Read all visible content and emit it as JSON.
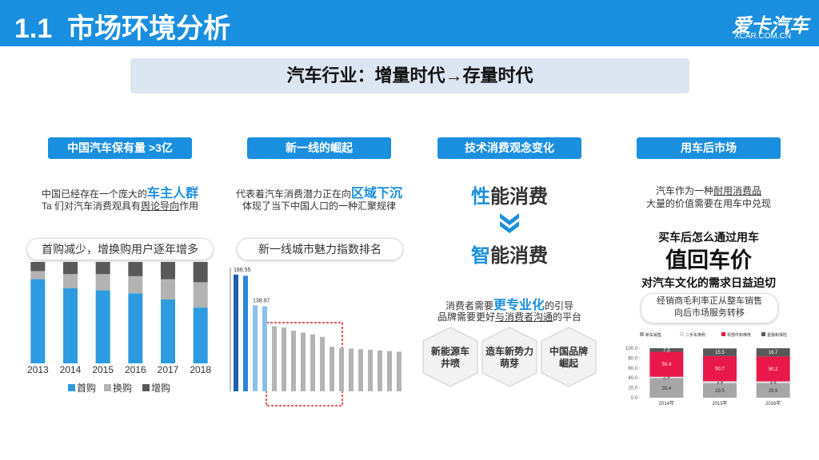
{
  "header": {
    "title": "1.1  市场环境分析",
    "logo": "爱卡汽车",
    "logo_sub": "XCAR.COM.CN"
  },
  "banner": "汽车行业：增量时代→存量时代",
  "columns": [
    {
      "heading": "中国汽车保有量 >3亿",
      "line1": [
        "中国已经存在一个庞大的",
        "车主人群"
      ],
      "line2": [
        "Ta 们对汽车消费观具有",
        "舆论导向",
        "作用"
      ],
      "pill": "首购减少，增换购用户逐年增多"
    },
    {
      "heading": "新一线的崛起",
      "line1": [
        "代表着汽车消费潜力正在向",
        "区域下沉"
      ],
      "line2": [
        "体现了当下中国人口的一种汇聚规律"
      ],
      "pill": "新一线城市魅力指数排名"
    },
    {
      "heading": "技术消费观念变化",
      "big1": [
        "性",
        "能消费"
      ],
      "big2": [
        "智",
        "能消费"
      ],
      "line1": [
        "消费者需要",
        "更专业化",
        "的引导"
      ],
      "line2": [
        "品牌需要更好",
        "与消费者沟通",
        "的平台"
      ],
      "hexes": [
        [
          "新能源车",
          "井喷"
        ],
        [
          "造车新势力",
          "萌芽"
        ],
        [
          "中国品牌",
          "崛起"
        ]
      ]
    },
    {
      "heading": "用车后市场",
      "line1": [
        "汽车作为一种",
        "耐用消费品"
      ],
      "line2": [
        "大量的价值需要在用车中兑现"
      ],
      "q1": "买车后怎么通过用车",
      "q2": "值回车价",
      "q3": "对汽车文化的需求日益迫切",
      "pill": [
        "经销商毛利率正从整车销售",
        "向后市场服务转移"
      ]
    }
  ],
  "chart_data": [
    {
      "type": "bar",
      "stacked": true,
      "categories": [
        "2013",
        "2014",
        "2015",
        "2016",
        "2017",
        "2018"
      ],
      "ylim": [
        0,
        100
      ],
      "series": [
        {
          "name": "首购",
          "color": "#2e9be0",
          "values": [
            83,
            74,
            72,
            69,
            63,
            55
          ]
        },
        {
          "name": "换购",
          "color": "#b3b3b3",
          "values": [
            8,
            14,
            16,
            17,
            20,
            25
          ]
        },
        {
          "name": "增购",
          "color": "#595959",
          "values": [
            9,
            12,
            12,
            14,
            17,
            20
          ]
        }
      ]
    },
    {
      "type": "bar",
      "categories": [
        null,
        null,
        null,
        null,
        null,
        null,
        null,
        null,
        null,
        null,
        null,
        null,
        null,
        null,
        null,
        null,
        null,
        null
      ],
      "ylim": [
        0,
        200
      ],
      "values": [
        188.55,
        186.68,
        138.97,
        137.5,
        105,
        103,
        98,
        95,
        92,
        88,
        72,
        70,
        69,
        68,
        67,
        66,
        65,
        64
      ],
      "colors": [
        "#1f5fae",
        "#2e86d6",
        "#8cc0ec",
        "#8cc0ec",
        "#b3b3b3",
        "#b3b3b3",
        "#b3b3b3",
        "#b3b3b3",
        "#b3b3b3",
        "#b3b3b3",
        "#b3b3b3",
        "#b3b3b3",
        "#b3b3b3",
        "#b3b3b3",
        "#b3b3b3",
        "#b3b3b3",
        "#b3b3b3",
        "#b3b3b3"
      ]
    },
    {
      "type": "bar",
      "stacked": true,
      "categories": [
        "2014年",
        "2015年",
        "2016年"
      ],
      "ylim": [
        0,
        100
      ],
      "yticks": [
        {
          "value": 0,
          "label": "0.0"
        },
        {
          "value": 20,
          "label": "20.0"
        },
        {
          "value": 40,
          "label": "40.0"
        },
        {
          "value": 60,
          "label": "60.0"
        },
        {
          "value": 80,
          "label": "80.0"
        },
        {
          "value": 100,
          "label": "100.0"
        }
      ],
      "series": [
        {
          "name": "新车销售",
          "color": "#a6a6a6",
          "values": [
            39.4,
            29.5,
            29.6
          ]
        },
        {
          "name": "二手车换购",
          "color": "#e0e0e0",
          "values": [
            2.9,
            3.8,
            3.4
          ]
        },
        {
          "name": "零部件和维修",
          "color": "#e8194a",
          "values": [
            50.4,
            50.7,
            50.2
          ]
        },
        {
          "name": "金融和保险",
          "color": "#595959",
          "values": [
            7.3,
            15.5,
            16.7
          ]
        }
      ]
    }
  ]
}
